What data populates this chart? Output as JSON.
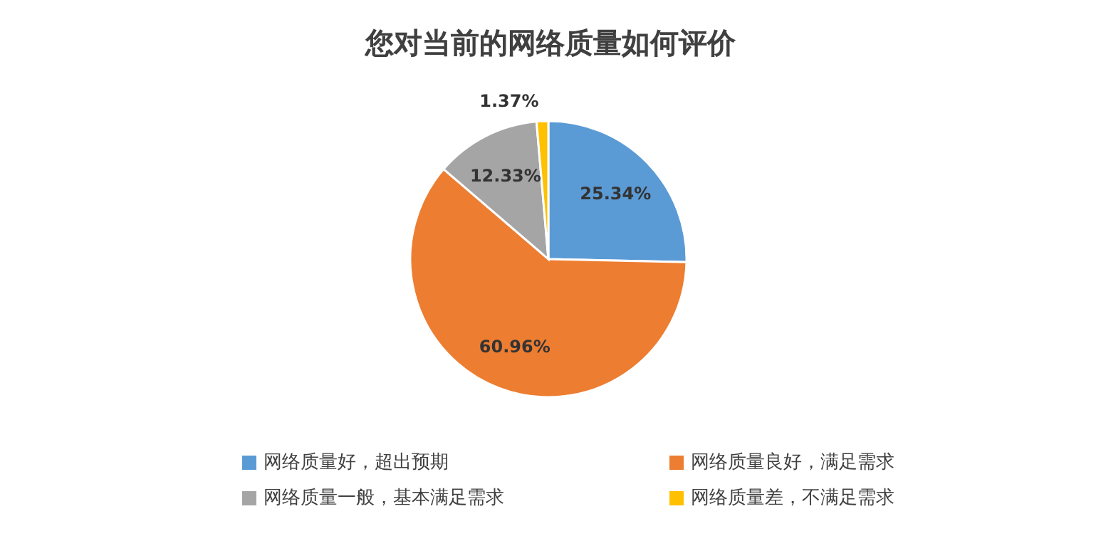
{
  "chart_data": {
    "type": "pie",
    "title": "您对当前的网络质量如何评价",
    "categories": [
      "网络质量好，超出预期",
      "网络质量良好，满足需求",
      "网络质量一般，基本满足需求",
      "网络质量差，不满足需求"
    ],
    "values": [
      25.34,
      60.96,
      12.33,
      1.37
    ],
    "colors": [
      "#5b9bd5",
      "#ed7d31",
      "#a5a5a5",
      "#ffc000"
    ],
    "value_labels": [
      "25.34%",
      "60.96%",
      "12.33%",
      "1.37%"
    ],
    "legend": "bottom"
  }
}
